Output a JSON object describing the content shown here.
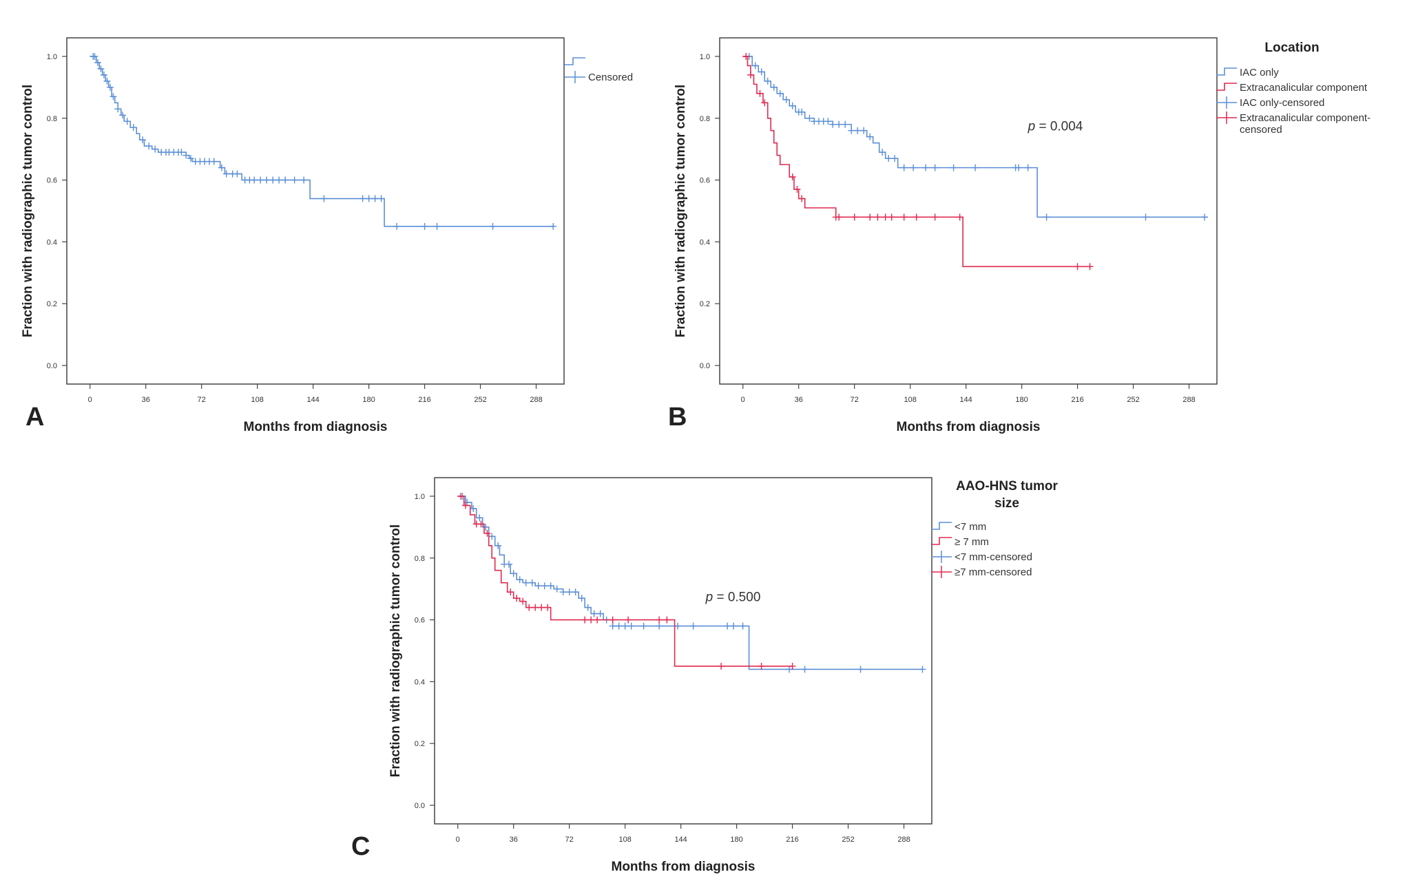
{
  "chart_data": [
    {
      "panel": "A",
      "type": "line",
      "xlabel": "Months from diagnosis",
      "ylabel": "Fraction with radiographic tumor control",
      "xticks": [
        0,
        36,
        72,
        108,
        144,
        180,
        216,
        252,
        288
      ],
      "yticks": [
        "0.0",
        "0.2",
        "0.4",
        "0.6",
        "0.8",
        "1.0"
      ],
      "xlim": [
        -15,
        306
      ],
      "ylim": [
        -0.06,
        1.06
      ],
      "legend": {
        "title": "",
        "entries": [
          {
            "label": "",
            "color": "#5b8fd6",
            "marker": "step"
          },
          {
            "label": "Censored",
            "color": "#5b8fd6",
            "marker": "plus"
          }
        ]
      },
      "p_value": null,
      "series": [
        {
          "name": "",
          "color": "#5b8fd6",
          "steps": [
            [
              0,
              1.0
            ],
            [
              4,
              0.98
            ],
            [
              6,
              0.96
            ],
            [
              8,
              0.94
            ],
            [
              10,
              0.92
            ],
            [
              12,
              0.9
            ],
            [
              14,
              0.87
            ],
            [
              16,
              0.85
            ],
            [
              18,
              0.83
            ],
            [
              20,
              0.81
            ],
            [
              22,
              0.79
            ],
            [
              26,
              0.77
            ],
            [
              30,
              0.75
            ],
            [
              32,
              0.73
            ],
            [
              35,
              0.71
            ],
            [
              40,
              0.7
            ],
            [
              44,
              0.69
            ],
            [
              62,
              0.68
            ],
            [
              64,
              0.67
            ],
            [
              66,
              0.66
            ],
            [
              84,
              0.64
            ],
            [
              87,
              0.62
            ],
            [
              98,
              0.6
            ],
            [
              142,
              0.54
            ],
            [
              190,
              0.45
            ]
          ],
          "end_x": 300,
          "censored": [
            2,
            3,
            5,
            7,
            9,
            11,
            13,
            15,
            18,
            21,
            24,
            28,
            34,
            38,
            42,
            46,
            49,
            51,
            54,
            57,
            59,
            62,
            65,
            68,
            71,
            74,
            77,
            80,
            85,
            88,
            92,
            95,
            100,
            103,
            106,
            110,
            114,
            118,
            122,
            126,
            132,
            138,
            151,
            176,
            180,
            184,
            188,
            198,
            216,
            224,
            260,
            299
          ]
        }
      ]
    },
    {
      "panel": "B",
      "type": "line",
      "xlabel": "Months from diagnosis",
      "ylabel": "Fraction with radiographic tumor control",
      "xticks": [
        0,
        36,
        72,
        108,
        144,
        180,
        216,
        252,
        288
      ],
      "yticks": [
        "0.0",
        "0.2",
        "0.4",
        "0.6",
        "0.8",
        "1.0"
      ],
      "xlim": [
        -15,
        306
      ],
      "ylim": [
        -0.06,
        1.06
      ],
      "legend": {
        "title": "Location",
        "entries": [
          {
            "label": "IAC only",
            "color": "#5b8fd6",
            "marker": "step"
          },
          {
            "label": "Extracanalicular component",
            "color": "#e0294f",
            "marker": "step"
          },
          {
            "label": "IAC only-censored",
            "color": "#5b8fd6",
            "marker": "plus"
          },
          {
            "label": "Extracanalicular component-censored",
            "color": "#e0294f",
            "marker": "plus",
            "wrap": [
              "Extracanalicular component-",
              "censored"
            ]
          }
        ]
      },
      "p_value": {
        "italic": "p",
        "text": " = 0.004",
        "x": 184,
        "y": 0.76
      },
      "series": [
        {
          "name": "IAC only",
          "color": "#5b8fd6",
          "steps": [
            [
              0,
              1.0
            ],
            [
              6,
              0.97
            ],
            [
              10,
              0.95
            ],
            [
              14,
              0.92
            ],
            [
              18,
              0.9
            ],
            [
              22,
              0.88
            ],
            [
              26,
              0.86
            ],
            [
              30,
              0.84
            ],
            [
              34,
              0.82
            ],
            [
              40,
              0.8
            ],
            [
              46,
              0.79
            ],
            [
              58,
              0.78
            ],
            [
              70,
              0.76
            ],
            [
              80,
              0.74
            ],
            [
              84,
              0.72
            ],
            [
              88,
              0.69
            ],
            [
              92,
              0.67
            ],
            [
              100,
              0.64
            ],
            [
              190,
              0.48
            ]
          ],
          "end_x": 300,
          "censored": [
            4,
            8,
            12,
            16,
            20,
            24,
            28,
            32,
            36,
            38,
            43,
            46,
            49,
            52,
            55,
            58,
            62,
            66,
            70,
            74,
            78,
            82,
            90,
            94,
            98,
            104,
            110,
            118,
            124,
            136,
            150,
            176,
            178,
            184,
            196,
            260,
            298
          ]
        },
        {
          "name": "Extracanalicular component",
          "color": "#e0294f",
          "steps": [
            [
              0,
              1.0
            ],
            [
              3,
              0.97
            ],
            [
              5,
              0.94
            ],
            [
              7,
              0.91
            ],
            [
              9,
              0.88
            ],
            [
              13,
              0.85
            ],
            [
              16,
              0.8
            ],
            [
              18,
              0.76
            ],
            [
              20,
              0.72
            ],
            [
              22,
              0.68
            ],
            [
              24,
              0.65
            ],
            [
              30,
              0.61
            ],
            [
              33,
              0.57
            ],
            [
              36,
              0.54
            ],
            [
              40,
              0.51
            ],
            [
              60,
              0.48
            ],
            [
              142,
              0.32
            ]
          ],
          "end_x": 225,
          "censored": [
            2,
            5,
            11,
            14,
            32,
            35,
            38,
            60,
            62,
            72,
            82,
            87,
            92,
            96,
            104,
            112,
            124,
            140,
            216,
            224
          ]
        }
      ]
    },
    {
      "panel": "C",
      "type": "line",
      "xlabel": "Months from diagnosis",
      "ylabel": "Fraction with radiographic tumor control",
      "xticks": [
        0,
        36,
        72,
        108,
        144,
        180,
        216,
        252,
        288
      ],
      "yticks": [
        "0.0",
        "0.2",
        "0.4",
        "0.6",
        "0.8",
        "1.0"
      ],
      "xlim": [
        -15,
        306
      ],
      "ylim": [
        -0.06,
        1.06
      ],
      "legend": {
        "title": "AAO-HNS tumor size",
        "title_lines": [
          "AAO-HNS tumor",
          "size"
        ],
        "entries": [
          {
            "label": "<7 mm",
            "color": "#5b8fd6",
            "marker": "step"
          },
          {
            "label": "≥ 7 mm",
            "color": "#e0294f",
            "marker": "step"
          },
          {
            "label": "<7 mm-censored",
            "color": "#5b8fd6",
            "marker": "plus"
          },
          {
            "label": "≥7 mm-censored",
            "color": "#e0294f",
            "marker": "plus"
          }
        ]
      },
      "p_value": {
        "italic": "p",
        "text": " = 0.500",
        "x": 160,
        "y": 0.66
      },
      "series": [
        {
          "name": "<7 mm",
          "color": "#5b8fd6",
          "steps": [
            [
              0,
              1.0
            ],
            [
              5,
              0.98
            ],
            [
              9,
              0.96
            ],
            [
              12,
              0.93
            ],
            [
              16,
              0.9
            ],
            [
              20,
              0.87
            ],
            [
              24,
              0.84
            ],
            [
              27,
              0.81
            ],
            [
              30,
              0.78
            ],
            [
              34,
              0.75
            ],
            [
              38,
              0.73
            ],
            [
              42,
              0.72
            ],
            [
              50,
              0.71
            ],
            [
              62,
              0.7
            ],
            [
              68,
              0.69
            ],
            [
              78,
              0.67
            ],
            [
              82,
              0.64
            ],
            [
              86,
              0.62
            ],
            [
              94,
              0.6
            ],
            [
              100,
              0.58
            ],
            [
              188,
              0.44
            ]
          ],
          "end_x": 300,
          "censored": [
            3,
            6,
            10,
            14,
            18,
            22,
            26,
            30,
            33,
            36,
            40,
            44,
            48,
            52,
            56,
            60,
            64,
            68,
            72,
            76,
            80,
            84,
            88,
            92,
            96,
            100,
            104,
            108,
            112,
            120,
            130,
            142,
            152,
            174,
            178,
            184,
            214,
            224,
            260,
            300
          ]
        },
        {
          "name": "≥ 7 mm",
          "color": "#e0294f",
          "steps": [
            [
              0,
              1.0
            ],
            [
              4,
              0.97
            ],
            [
              8,
              0.94
            ],
            [
              11,
              0.91
            ],
            [
              17,
              0.88
            ],
            [
              20,
              0.84
            ],
            [
              22,
              0.8
            ],
            [
              24,
              0.76
            ],
            [
              28,
              0.72
            ],
            [
              32,
              0.69
            ],
            [
              36,
              0.67
            ],
            [
              40,
              0.66
            ],
            [
              44,
              0.64
            ],
            [
              60,
              0.6
            ],
            [
              140,
              0.45
            ]
          ],
          "end_x": 216,
          "censored": [
            2,
            5,
            12,
            15,
            19,
            34,
            38,
            42,
            46,
            50,
            54,
            58,
            82,
            86,
            90,
            100,
            110,
            130,
            135,
            170,
            196,
            216
          ]
        }
      ]
    }
  ]
}
